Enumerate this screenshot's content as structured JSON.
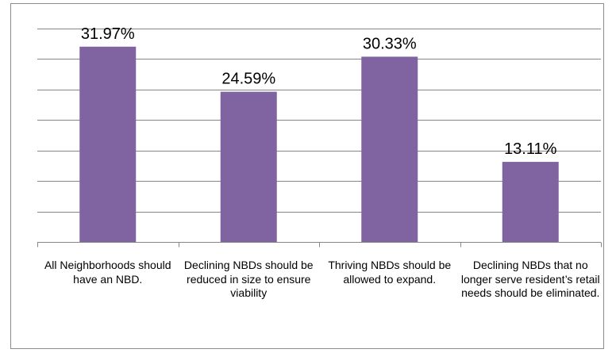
{
  "chart_data": {
    "type": "bar",
    "categories": [
      "All Neighborhoods should have an NBD.",
      "Declining NBDs should be reduced in size to ensure viability",
      "Thriving NBDs should be allowed to expand.",
      "Declining NBDs that no longer serve resident’s retail needs should be eliminated."
    ],
    "values": [
      31.97,
      24.59,
      30.33,
      13.11
    ],
    "data_labels": [
      "31.97%",
      "24.59%",
      "30.33%",
      "13.11%"
    ],
    "title": "",
    "xlabel": "",
    "ylabel": "",
    "ylim": [
      0,
      40
    ],
    "y_gridlines": [
      5,
      10,
      15,
      20,
      25,
      30,
      35,
      40
    ],
    "grid": true,
    "legend": "none",
    "bar_color": "#8064a2",
    "gridline_color": "#868686"
  }
}
